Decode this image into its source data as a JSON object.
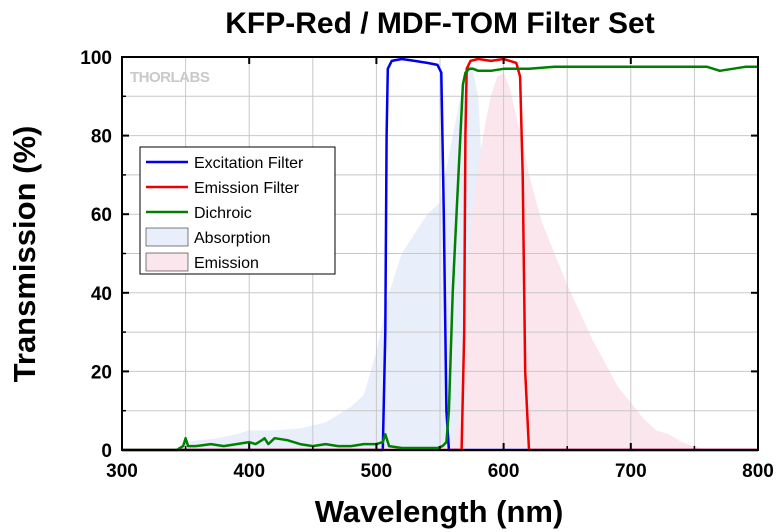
{
  "chart_data": {
    "type": "line",
    "title": "KFP-Red / MDF-TOM Filter Set",
    "xlabel": "Wavelength (nm)",
    "ylabel": "Transmission (%)",
    "xlim": [
      300,
      800
    ],
    "ylim": [
      0,
      100
    ],
    "xticks": [
      "300",
      "400",
      "500",
      "600",
      "700",
      "800"
    ],
    "yticks": [
      "0",
      "20",
      "40",
      "60",
      "80",
      "100"
    ],
    "grid": true,
    "legend_position": "upper-left",
    "watermark": "THORLABS",
    "series": [
      {
        "name": "Excitation Filter",
        "kind": "line",
        "color": "#0000ee",
        "x": [
          300,
          505,
          507,
          508,
          509,
          512,
          520,
          530,
          540,
          548,
          551,
          553,
          555,
          557,
          800
        ],
        "y": [
          0,
          0,
          30,
          80,
          97,
          99,
          99.5,
          99,
          98.5,
          98,
          96,
          60,
          10,
          0,
          0
        ]
      },
      {
        "name": "Emission Filter",
        "kind": "line",
        "color": "#ee0000",
        "x": [
          300,
          567,
          569,
          570,
          571,
          574,
          580,
          590,
          600,
          610,
          613,
          615,
          617,
          620,
          800
        ],
        "y": [
          0,
          0,
          30,
          80,
          97,
          99,
          99.5,
          99,
          99.5,
          98.5,
          95,
          70,
          20,
          0,
          0
        ]
      },
      {
        "name": "Dichroic",
        "kind": "line",
        "color": "#008000",
        "x": [
          300,
          343,
          348,
          350,
          352,
          358,
          370,
          380,
          390,
          400,
          405,
          410,
          412,
          415,
          420,
          430,
          440,
          450,
          460,
          470,
          480,
          490,
          500,
          505,
          507,
          510,
          520,
          530,
          540,
          548,
          552,
          555,
          557,
          560,
          563,
          566,
          568,
          570,
          573,
          576,
          580,
          590,
          600,
          610,
          620,
          640,
          660,
          680,
          700,
          720,
          740,
          760,
          770,
          780,
          790,
          800
        ],
        "y": [
          0,
          0,
          1,
          3,
          1,
          1,
          1.5,
          1,
          1.5,
          2,
          1.5,
          2.5,
          3,
          1.5,
          3,
          2.5,
          1.5,
          1,
          1.5,
          1,
          1,
          1.5,
          1.5,
          2,
          4,
          1,
          0.5,
          0.5,
          0.5,
          0.5,
          1,
          2,
          10,
          40,
          60,
          80,
          93,
          96,
          97,
          97,
          96.5,
          96.5,
          97,
          97,
          97,
          97.5,
          97.5,
          97.5,
          97.5,
          97.5,
          97.5,
          97.5,
          96.5,
          97,
          97.5,
          97.5
        ]
      },
      {
        "name": "Absorption",
        "kind": "area",
        "color": "#e8eefa",
        "x": [
          300,
          345,
          350,
          360,
          375,
          390,
          400,
          410,
          420,
          440,
          460,
          470,
          480,
          490,
          500,
          510,
          520,
          530,
          540,
          550,
          560,
          570,
          575,
          580,
          585,
          590,
          600,
          610,
          620,
          800
        ],
        "y": [
          0,
          0,
          2,
          2.5,
          3,
          4,
          5,
          5,
          5,
          5.5,
          7,
          9,
          11,
          14,
          25,
          40,
          50,
          55,
          60,
          63,
          80,
          96,
          98,
          90,
          60,
          30,
          6,
          2,
          0,
          0
        ]
      },
      {
        "name": "Emission",
        "kind": "area",
        "color": "#fbe6ee",
        "x": [
          300,
          560,
          565,
          570,
          575,
          580,
          585,
          590,
          595,
          600,
          605,
          610,
          615,
          620,
          630,
          640,
          650,
          660,
          670,
          680,
          690,
          700,
          710,
          720,
          730,
          740,
          750,
          760,
          800
        ],
        "y": [
          0,
          0,
          10,
          40,
          60,
          72,
          82,
          90,
          95,
          96,
          92,
          85,
          78,
          70,
          58,
          50,
          42,
          35,
          28,
          22,
          16,
          12,
          8,
          5,
          4,
          2,
          1,
          0,
          0
        ]
      }
    ]
  }
}
